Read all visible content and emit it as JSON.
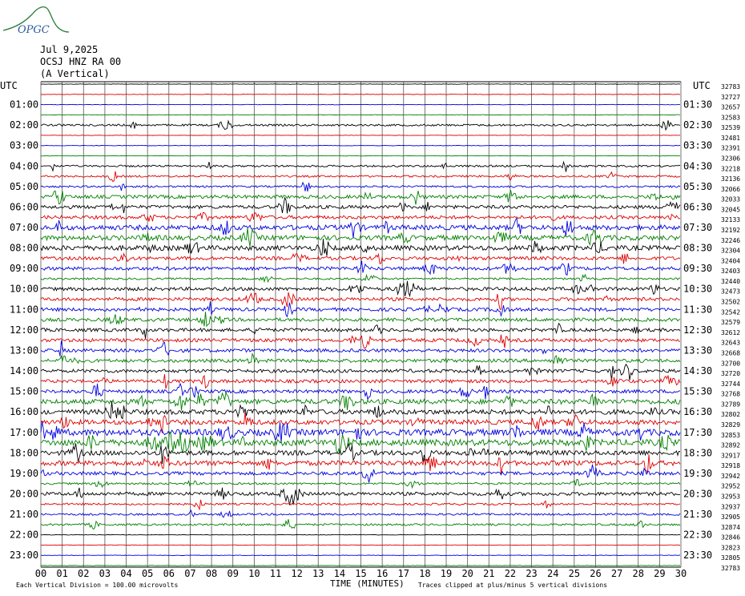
{
  "logo": {
    "text": "OPGC",
    "color": "#2a5a9a",
    "curve_color": "#2a7a3a"
  },
  "header": {
    "date": "Jul 9,2025",
    "station": "OCSJ HNZ RA 00",
    "component": "(A Vertical)"
  },
  "axis": {
    "left_label": "UTC",
    "right_label": "UTC",
    "xlabel": "TIME (MINUTES)",
    "footer_left": "Each Vertical Division =  100.00 microvolts",
    "footer_right": "Traces clipped at plus/minus 5 vertical divisions"
  },
  "chart_data": {
    "type": "line",
    "title": "",
    "xlabel": "TIME (MINUTES)",
    "xlim": [
      0,
      30
    ],
    "x_ticks": [
      "00",
      "01",
      "02",
      "03",
      "04",
      "05",
      "06",
      "07",
      "08",
      "09",
      "10",
      "11",
      "12",
      "13",
      "14",
      "15",
      "16",
      "17",
      "18",
      "19",
      "20",
      "21",
      "22",
      "23",
      "24",
      "25",
      "26",
      "27",
      "28",
      "29",
      "30"
    ],
    "left_row_labels": [
      "",
      "01:00",
      "02:00",
      "03:00",
      "04:00",
      "05:00",
      "06:00",
      "07:00",
      "08:00",
      "09:00",
      "10:00",
      "11:00",
      "12:00",
      "13:00",
      "14:00",
      "15:00",
      "16:00",
      "17:00",
      "18:00",
      "19:00",
      "20:00",
      "21:00",
      "22:00",
      "23:00"
    ],
    "right_row_labels": [
      "",
      "01:30",
      "02:30",
      "03:30",
      "04:30",
      "05:30",
      "06:30",
      "07:30",
      "08:30",
      "09:30",
      "10:30",
      "11:30",
      "12:30",
      "13:30",
      "14:30",
      "15:30",
      "16:30",
      "17:30",
      "18:30",
      "19:30",
      "20:30",
      "21:30",
      "22:30",
      "23:30"
    ],
    "trace_colors": [
      "#000000",
      "#e00000",
      "#0000e0",
      "#008000"
    ],
    "traces_count": 48,
    "trace_offsets": [
      32783,
      32727,
      32657,
      32583,
      32539,
      32481,
      32391,
      32306,
      32218,
      32136,
      32066,
      32033,
      32045,
      32133,
      32192,
      32246,
      32304,
      32404,
      32403,
      32440,
      32473,
      32502,
      32542,
      32579,
      32612,
      32643,
      32668,
      32700,
      32720,
      32744,
      32768,
      32789,
      32802,
      32829,
      32853,
      32892,
      32917,
      32918,
      32942,
      32952,
      32953,
      32937,
      32905,
      32874,
      32846,
      32823,
      32805,
      32783
    ],
    "activity_levels": [
      0,
      0,
      0,
      0,
      1,
      0,
      0,
      0,
      1,
      1,
      1,
      2,
      2,
      2,
      3,
      3,
      3,
      2,
      2,
      1,
      2,
      2,
      2,
      2,
      2,
      2,
      2,
      2,
      2,
      2,
      2,
      3,
      3,
      3,
      4,
      4,
      3,
      3,
      2,
      1,
      2,
      1,
      1,
      1,
      0,
      0,
      0,
      0
    ],
    "grid": true,
    "scale_division": "100.00 microvolts",
    "clip_divisions": 5
  }
}
